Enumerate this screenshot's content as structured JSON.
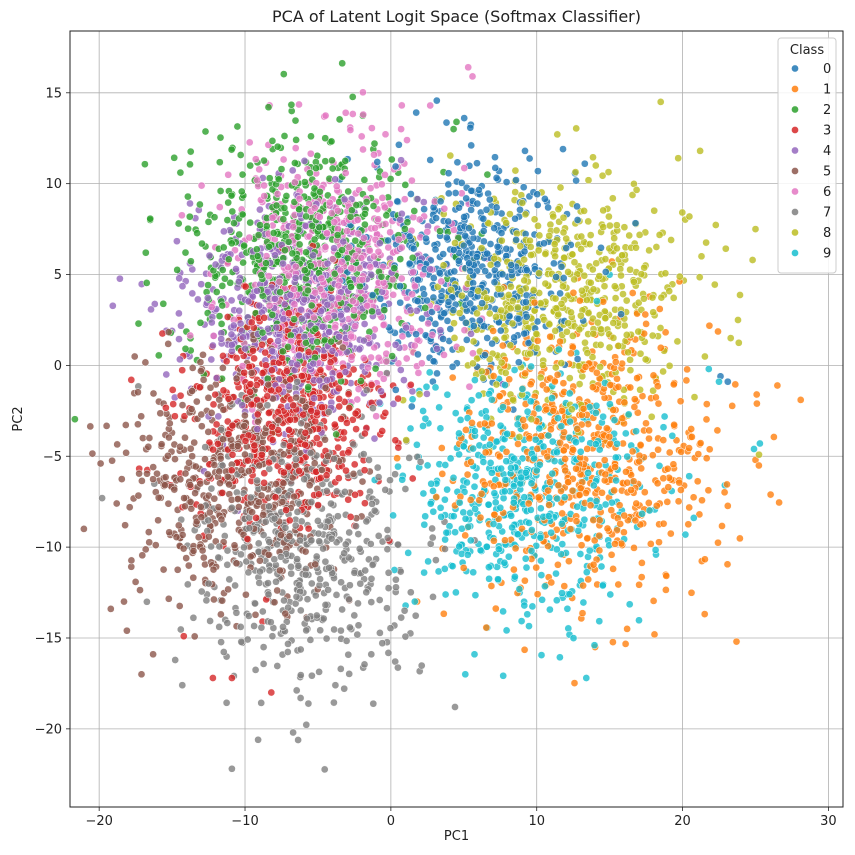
{
  "chart_data": {
    "type": "scatter",
    "title": "PCA of Latent Logit Space (Softmax Classifier)",
    "xlabel": "PC1",
    "ylabel": "PC2",
    "xlim": [
      -22,
      31
    ],
    "ylim": [
      -24.3,
      18.4
    ],
    "xticks": [
      -20,
      -10,
      0,
      10,
      20,
      30
    ],
    "xtick_labels": [
      "−20",
      "−10",
      "0",
      "10",
      "20",
      "30"
    ],
    "yticks": [
      -20,
      -15,
      -10,
      -5,
      0,
      5,
      10,
      15
    ],
    "ytick_labels": [
      "−20",
      "−15",
      "−10",
      "−5",
      "0",
      "5",
      "10",
      "15"
    ],
    "grid": true,
    "legend": {
      "title": "Class",
      "placement": "top-right"
    },
    "series": [
      {
        "name": "0",
        "color": "#1f77b4",
        "center": [
          5.5,
          5.5
        ],
        "spread": [
          3.5,
          3.0
        ],
        "count": 520,
        "points": [
          [
            9.2,
            11.8
          ],
          [
            11.8,
            11.9
          ],
          [
            13.3,
            11.1
          ],
          [
            9.5,
            9.3
          ],
          [
            12.8,
            8.0
          ],
          [
            10.7,
            9.0
          ],
          [
            22.6,
            -0.6
          ],
          [
            23.1,
            -0.9
          ]
        ]
      },
      {
        "name": "1",
        "color": "#ff7f0e",
        "center": [
          13.5,
          -5.0
        ],
        "spread": [
          4.5,
          3.8
        ],
        "count": 620,
        "points": [
          [
            28.1,
            -1.9
          ],
          [
            25.1,
            -2.1
          ],
          [
            23.7,
            -15.2
          ],
          [
            14.0,
            -15.5
          ],
          [
            16.2,
            -14.5
          ],
          [
            1.8,
            -13.0
          ],
          [
            25.0,
            -5.2
          ]
        ]
      },
      {
        "name": "2",
        "color": "#2ca02c",
        "center": [
          -6.0,
          6.0
        ],
        "spread": [
          4.0,
          3.2
        ],
        "count": 620,
        "points": [
          [
            -6.8,
            14.0
          ],
          [
            4.5,
            13.4
          ],
          [
            4.3,
            13.0
          ],
          [
            -16.5,
            8.0
          ],
          [
            -16.8,
            6.2
          ],
          [
            -17.3,
            2.3
          ],
          [
            -4.5,
            12.5
          ]
        ]
      },
      {
        "name": "3",
        "color": "#d62728",
        "center": [
          -7.0,
          -2.5
        ],
        "spread": [
          3.2,
          3.2
        ],
        "count": 580,
        "points": [
          [
            -17.8,
            -0.8
          ],
          [
            -12.2,
            -17.2
          ],
          [
            -10.9,
            -17.2
          ],
          [
            -8.2,
            -18.0
          ],
          [
            -14.2,
            -14.9
          ],
          [
            -8.8,
            -14.1
          ]
        ]
      },
      {
        "name": "4",
        "color": "#9467bd",
        "center": [
          -6.5,
          3.0
        ],
        "spread": [
          3.8,
          3.0
        ],
        "count": 580,
        "points": [
          [
            -13.4,
            8.1
          ],
          [
            -15.0,
            1.9
          ],
          [
            -13.8,
            0.5
          ],
          [
            -10.5,
            -8.0
          ]
        ]
      },
      {
        "name": "5",
        "color": "#8c564b",
        "center": [
          -10.5,
          -6.0
        ],
        "spread": [
          3.6,
          3.2
        ],
        "count": 560,
        "points": [
          [
            -19.9,
            -5.4
          ],
          [
            -18.8,
            -7.6
          ],
          [
            -18.3,
            -13.0
          ],
          [
            -19.2,
            -13.4
          ],
          [
            -17.1,
            -17.0
          ],
          [
            -16.3,
            -15.9
          ],
          [
            -18.1,
            -14.6
          ],
          [
            -17.0,
            -4.0
          ]
        ]
      },
      {
        "name": "6",
        "color": "#e377c2",
        "center": [
          -3.5,
          5.5
        ],
        "spread": [
          3.8,
          3.2
        ],
        "count": 560,
        "points": [
          [
            5.3,
            16.4
          ],
          [
            5.6,
            15.9
          ],
          [
            2.7,
            14.3
          ],
          [
            -3.1,
            13.9
          ],
          [
            -2.0,
            12.6
          ],
          [
            -1.9,
            13.8
          ],
          [
            0.7,
            13.0
          ]
        ]
      },
      {
        "name": "7",
        "color": "#7f7f7f",
        "center": [
          -6.0,
          -10.0
        ],
        "spread": [
          3.8,
          3.6
        ],
        "count": 520,
        "points": [
          [
            -19.8,
            -7.3
          ],
          [
            -10.9,
            -22.2
          ],
          [
            -9.1,
            -20.6
          ],
          [
            -6.7,
            -20.2
          ],
          [
            4.4,
            -18.8
          ],
          [
            -14.3,
            -17.6
          ],
          [
            0.3,
            -16.3
          ],
          [
            -3.8,
            -17.6
          ]
        ]
      },
      {
        "name": "8",
        "color": "#bcbd22",
        "center": [
          12.0,
          3.5
        ],
        "spread": [
          4.2,
          3.2
        ],
        "count": 560,
        "points": [
          [
            18.5,
            14.5
          ],
          [
            21.2,
            11.8
          ],
          [
            19.7,
            11.4
          ],
          [
            25.0,
            7.5
          ],
          [
            24.8,
            5.8
          ],
          [
            23.8,
            2.5
          ],
          [
            23.3,
            1.5
          ],
          [
            21.3,
            6.0
          ]
        ]
      },
      {
        "name": "9",
        "color": "#17becf",
        "center": [
          9.0,
          -7.0
        ],
        "spread": [
          4.0,
          3.4
        ],
        "count": 560,
        "points": [
          [
            13.4,
            -17.2
          ],
          [
            5.1,
            -17.0
          ],
          [
            22.9,
            -6.6
          ],
          [
            25.3,
            -4.3
          ],
          [
            24.9,
            -4.6
          ],
          [
            21.8,
            -0.2
          ],
          [
            22.5,
            -0.9
          ],
          [
            3.7,
            -11.2
          ]
        ]
      }
    ]
  }
}
